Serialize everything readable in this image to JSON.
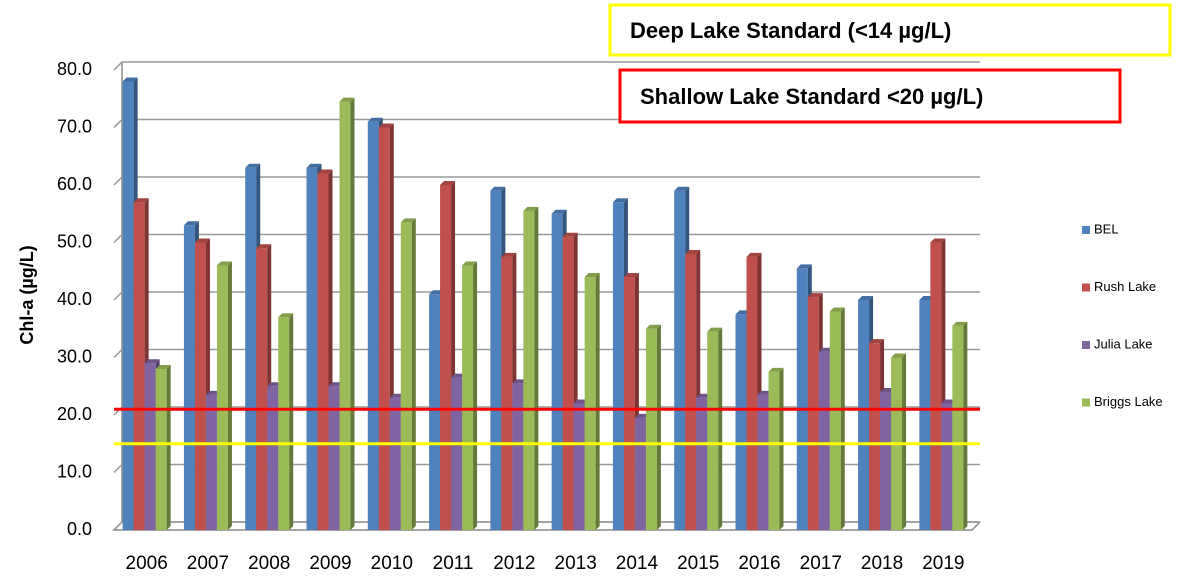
{
  "chart_data": {
    "type": "bar",
    "y_label": "Chl-a (µg/L)",
    "categories": [
      "2006",
      "2007",
      "2008",
      "2009",
      "2010",
      "2011",
      "2012",
      "2013",
      "2014",
      "2015",
      "2016",
      "2017",
      "2018",
      "2019"
    ],
    "series": [
      {
        "name": "BEL",
        "color": "#4f81bd",
        "values": [
          78,
          53,
          63,
          63,
          71,
          41,
          59,
          55,
          57,
          59,
          37.5,
          45.5,
          40,
          40
        ]
      },
      {
        "name": "Rush Lake",
        "color": "#c0504d",
        "values": [
          57,
          50,
          49,
          62,
          70,
          60,
          47.5,
          51,
          44,
          48,
          47.5,
          40.5,
          32.5,
          50
        ]
      },
      {
        "name": "Julia Lake",
        "color": "#8064a2",
        "values": [
          29,
          23.5,
          25,
          25,
          23,
          26.5,
          25.5,
          22,
          19.5,
          23,
          23.5,
          31,
          24,
          22
        ]
      },
      {
        "name": "Briggs Lake",
        "color": "#9bbb59",
        "values": [
          28,
          46,
          37,
          74.5,
          53.5,
          46,
          55.5,
          44,
          35,
          34.5,
          27.5,
          38,
          30,
          35.5
        ]
      }
    ],
    "ylim": [
      0,
      80
    ],
    "yticks": [
      {
        "value": 0,
        "label": "0.0"
      },
      {
        "value": 10,
        "label": "10.0"
      },
      {
        "value": 20,
        "label": "20.0"
      },
      {
        "value": 30,
        "label": "30.0"
      },
      {
        "value": 40,
        "label": "40.0"
      },
      {
        "value": 50,
        "label": "50.0"
      },
      {
        "value": 60,
        "label": "60.0"
      },
      {
        "value": 70,
        "label": "70.0"
      },
      {
        "value": 80,
        "label": "80.0"
      }
    ],
    "grid": true,
    "legend": "right",
    "annotations": [
      {
        "text": "Deep Lake Standard (<14 µg/L)",
        "color": "#ffff00",
        "value": 15
      },
      {
        "text": "Shallow Lake Standard <20 µg/L)",
        "color": "#ff0000",
        "value": 21
      }
    ]
  }
}
